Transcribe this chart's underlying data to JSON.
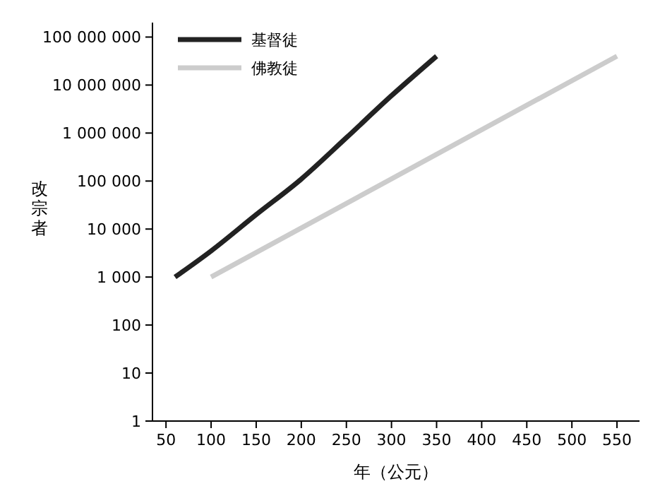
{
  "chart_data": {
    "type": "line",
    "xlabel": "年（公元）",
    "ylabel": "改宗者",
    "log": "y",
    "grid": false,
    "legend": "top left",
    "marker": "none",
    "line_style": "solid",
    "xlim": [
      35,
      575
    ],
    "xticks": [
      50,
      100,
      150,
      200,
      250,
      300,
      350,
      400,
      450,
      500,
      550
    ],
    "ylim": [
      1,
      200000000
    ],
    "yticks": [
      {
        "value": 1,
        "label": "1"
      },
      {
        "value": 10,
        "label": "10"
      },
      {
        "value": 100,
        "label": "100"
      },
      {
        "value": 1000,
        "label": "1 000"
      },
      {
        "value": 10000,
        "label": "10 000"
      },
      {
        "value": 100000,
        "label": "100 000"
      },
      {
        "value": 1000000,
        "label": "1 000 000"
      },
      {
        "value": 10000000,
        "label": "10 000 000"
      },
      {
        "value": 100000000,
        "label": "100 000 000"
      }
    ],
    "series": [
      {
        "name": "基督徒",
        "color": "#222222",
        "x": [
          60,
          100,
          150,
          200,
          250,
          300,
          350
        ],
        "values": [
          1000,
          3500,
          20000,
          110000,
          800000,
          6000000,
          40000000
        ]
      },
      {
        "name": "佛教徒",
        "color": "#cccccc",
        "x": [
          100,
          550
        ],
        "values": [
          1000,
          40000000
        ]
      }
    ]
  }
}
